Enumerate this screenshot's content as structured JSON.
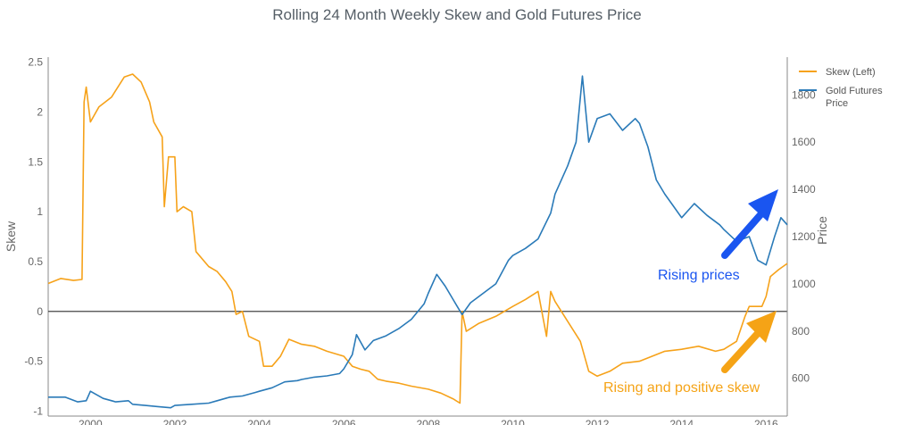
{
  "chart_data": {
    "type": "line",
    "title": "Rolling 24 Month Weekly Skew and Gold Futures Price",
    "xlabel": "",
    "ylabel": "Skew",
    "y2label": "Price",
    "xlim": [
      1999.0,
      2016.5
    ],
    "ylim": [
      -1.05,
      2.55
    ],
    "y2lim": [
      440,
      1960
    ],
    "xticks": [
      "2000",
      "2002",
      "2004",
      "2006",
      "2008",
      "2010",
      "2012",
      "2014",
      "2016"
    ],
    "yticks": [
      "2.5",
      "2",
      "1.5",
      "1",
      "0.5",
      "0",
      "-0.5",
      "-1"
    ],
    "y2ticks": [
      "1800",
      "1600",
      "1400",
      "1200",
      "1000",
      "800",
      "600"
    ],
    "legend_position": "top-right",
    "series": [
      {
        "name": "Skew (Left)",
        "axis": "left",
        "color": "#f6a21a",
        "points": [
          [
            1999.0,
            0.28
          ],
          [
            1999.3,
            0.33
          ],
          [
            1999.6,
            0.31
          ],
          [
            1999.8,
            0.32
          ],
          [
            1999.85,
            2.1
          ],
          [
            1999.9,
            2.25
          ],
          [
            2000.0,
            1.9
          ],
          [
            2000.2,
            2.05
          ],
          [
            2000.5,
            2.15
          ],
          [
            2000.8,
            2.35
          ],
          [
            2001.0,
            2.38
          ],
          [
            2001.2,
            2.3
          ],
          [
            2001.4,
            2.1
          ],
          [
            2001.5,
            1.9
          ],
          [
            2001.7,
            1.75
          ],
          [
            2001.75,
            1.05
          ],
          [
            2001.85,
            1.55
          ],
          [
            2002.0,
            1.55
          ],
          [
            2002.05,
            1.0
          ],
          [
            2002.2,
            1.05
          ],
          [
            2002.4,
            1.0
          ],
          [
            2002.5,
            0.6
          ],
          [
            2002.8,
            0.45
          ],
          [
            2003.0,
            0.4
          ],
          [
            2003.2,
            0.3
          ],
          [
            2003.35,
            0.2
          ],
          [
            2003.45,
            -0.03
          ],
          [
            2003.6,
            0.0
          ],
          [
            2003.75,
            -0.25
          ],
          [
            2004.0,
            -0.3
          ],
          [
            2004.1,
            -0.55
          ],
          [
            2004.3,
            -0.55
          ],
          [
            2004.5,
            -0.45
          ],
          [
            2004.7,
            -0.28
          ],
          [
            2005.0,
            -0.33
          ],
          [
            2005.3,
            -0.35
          ],
          [
            2005.6,
            -0.4
          ],
          [
            2006.0,
            -0.45
          ],
          [
            2006.2,
            -0.55
          ],
          [
            2006.4,
            -0.58
          ],
          [
            2006.6,
            -0.6
          ],
          [
            2006.8,
            -0.68
          ],
          [
            2007.0,
            -0.7
          ],
          [
            2007.3,
            -0.72
          ],
          [
            2007.6,
            -0.75
          ],
          [
            2008.0,
            -0.78
          ],
          [
            2008.3,
            -0.82
          ],
          [
            2008.6,
            -0.88
          ],
          [
            2008.75,
            -0.92
          ],
          [
            2008.8,
            0.0
          ],
          [
            2008.9,
            -0.2
          ],
          [
            2009.2,
            -0.12
          ],
          [
            2009.6,
            -0.05
          ],
          [
            2010.0,
            0.05
          ],
          [
            2010.3,
            0.12
          ],
          [
            2010.6,
            0.2
          ],
          [
            2010.8,
            -0.25
          ],
          [
            2010.9,
            0.2
          ],
          [
            2011.0,
            0.1
          ],
          [
            2011.3,
            -0.1
          ],
          [
            2011.6,
            -0.3
          ],
          [
            2011.8,
            -0.6
          ],
          [
            2012.0,
            -0.65
          ],
          [
            2012.3,
            -0.6
          ],
          [
            2012.6,
            -0.52
          ],
          [
            2013.0,
            -0.5
          ],
          [
            2013.3,
            -0.45
          ],
          [
            2013.6,
            -0.4
          ],
          [
            2014.0,
            -0.38
          ],
          [
            2014.4,
            -0.35
          ],
          [
            2014.8,
            -0.4
          ],
          [
            2015.0,
            -0.38
          ],
          [
            2015.3,
            -0.3
          ],
          [
            2015.5,
            -0.05
          ],
          [
            2015.6,
            0.05
          ],
          [
            2015.9,
            0.05
          ],
          [
            2016.0,
            0.15
          ],
          [
            2016.1,
            0.35
          ],
          [
            2016.3,
            0.42
          ],
          [
            2016.5,
            0.48
          ]
        ]
      },
      {
        "name": "Gold Futures Price",
        "axis": "right",
        "color": "#2a7ab8",
        "points": [
          [
            1999.0,
            520
          ],
          [
            1999.4,
            520
          ],
          [
            1999.7,
            500
          ],
          [
            1999.9,
            505
          ],
          [
            2000.0,
            545
          ],
          [
            2000.3,
            515
          ],
          [
            2000.6,
            500
          ],
          [
            2000.9,
            505
          ],
          [
            2001.0,
            490
          ],
          [
            2001.3,
            485
          ],
          [
            2001.6,
            480
          ],
          [
            2001.9,
            475
          ],
          [
            2002.0,
            485
          ],
          [
            2002.4,
            490
          ],
          [
            2002.8,
            495
          ],
          [
            2003.0,
            505
          ],
          [
            2003.3,
            520
          ],
          [
            2003.6,
            525
          ],
          [
            2003.9,
            540
          ],
          [
            2004.0,
            545
          ],
          [
            2004.3,
            560
          ],
          [
            2004.6,
            585
          ],
          [
            2004.9,
            590
          ],
          [
            2005.0,
            595
          ],
          [
            2005.3,
            605
          ],
          [
            2005.6,
            610
          ],
          [
            2005.9,
            620
          ],
          [
            2006.0,
            640
          ],
          [
            2006.2,
            700
          ],
          [
            2006.3,
            785
          ],
          [
            2006.5,
            720
          ],
          [
            2006.7,
            760
          ],
          [
            2007.0,
            780
          ],
          [
            2007.3,
            810
          ],
          [
            2007.6,
            850
          ],
          [
            2007.9,
            915
          ],
          [
            2008.0,
            960
          ],
          [
            2008.2,
            1040
          ],
          [
            2008.4,
            990
          ],
          [
            2008.6,
            930
          ],
          [
            2008.8,
            870
          ],
          [
            2009.0,
            920
          ],
          [
            2009.3,
            960
          ],
          [
            2009.6,
            1000
          ],
          [
            2009.9,
            1100
          ],
          [
            2010.0,
            1120
          ],
          [
            2010.3,
            1150
          ],
          [
            2010.6,
            1190
          ],
          [
            2010.9,
            1300
          ],
          [
            2011.0,
            1380
          ],
          [
            2011.3,
            1500
          ],
          [
            2011.5,
            1600
          ],
          [
            2011.65,
            1880
          ],
          [
            2011.8,
            1600
          ],
          [
            2012.0,
            1700
          ],
          [
            2012.3,
            1720
          ],
          [
            2012.6,
            1650
          ],
          [
            2012.9,
            1700
          ],
          [
            2013.0,
            1680
          ],
          [
            2013.2,
            1580
          ],
          [
            2013.4,
            1440
          ],
          [
            2013.6,
            1380
          ],
          [
            2013.8,
            1330
          ],
          [
            2014.0,
            1280
          ],
          [
            2014.3,
            1340
          ],
          [
            2014.6,
            1290
          ],
          [
            2014.9,
            1250
          ],
          [
            2015.0,
            1230
          ],
          [
            2015.3,
            1180
          ],
          [
            2015.6,
            1200
          ],
          [
            2015.8,
            1100
          ],
          [
            2016.0,
            1080
          ],
          [
            2016.2,
            1200
          ],
          [
            2016.35,
            1280
          ],
          [
            2016.5,
            1250
          ]
        ]
      }
    ],
    "annotations": [
      {
        "text": "Rising prices",
        "color": "#1a55f0"
      },
      {
        "text": "Rising and positive skew",
        "color": "#f5a316"
      }
    ]
  }
}
